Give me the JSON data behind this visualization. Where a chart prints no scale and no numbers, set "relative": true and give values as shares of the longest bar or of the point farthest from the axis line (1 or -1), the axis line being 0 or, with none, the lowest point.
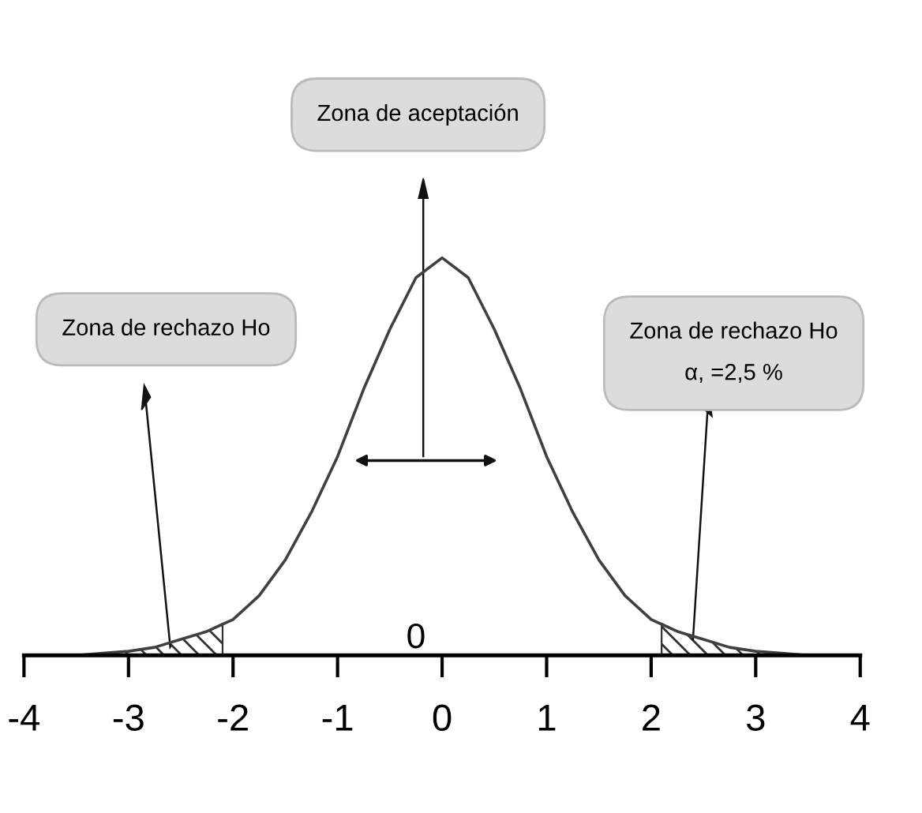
{
  "chart_data": {
    "type": "line",
    "relative": true,
    "tick_labels": "x",
    "grid": false,
    "marker": "none",
    "line_style": "solid",
    "xlim": [
      -4,
      4
    ],
    "xticks": [
      -4,
      -3,
      -2,
      -1,
      0,
      1,
      2,
      3,
      4
    ],
    "series": [
      {
        "color": "#404040",
        "x": [
          -3.5,
          -3.25,
          -3,
          -2.75,
          -2.5,
          -2.25,
          -2,
          -1.75,
          -1.5,
          -1.25,
          -1,
          -0.75,
          -0.5,
          -0.25,
          0,
          0.25,
          0.5,
          0.75,
          1,
          1.25,
          1.5,
          1.75,
          2,
          2.25,
          2.5,
          2.75,
          3,
          3.25,
          3.5
        ],
        "values": [
          0.0,
          0.005,
          0.01,
          0.02,
          0.04,
          0.06,
          0.09,
          0.15,
          0.24,
          0.36,
          0.5,
          0.67,
          0.82,
          0.95,
          1.0,
          0.95,
          0.82,
          0.67,
          0.5,
          0.36,
          0.24,
          0.15,
          0.09,
          0.06,
          0.04,
          0.02,
          0.01,
          0.005,
          0.0
        ]
      },
      {
        "type": "area",
        "color": "#333333",
        "x": [
          -3.5,
          -3.25,
          -3,
          -2.75,
          -2.5,
          -2.25,
          -2.1
        ],
        "values": [
          0.0,
          0.005,
          0.01,
          0.02,
          0.04,
          0.06,
          0.08
        ]
      },
      {
        "type": "area",
        "color": "#333333",
        "x": [
          2.1,
          2.25,
          2.5,
          2.75,
          3,
          3.25,
          3.5
        ],
        "values": [
          0.08,
          0.06,
          0.04,
          0.02,
          0.01,
          0.005,
          0.0
        ]
      }
    ],
    "annotations": [
      "Zona de aceptación",
      "Zona de rechazo Ho",
      "Zona de rechazo Ho\nα, =2,5 %",
      "0"
    ]
  }
}
